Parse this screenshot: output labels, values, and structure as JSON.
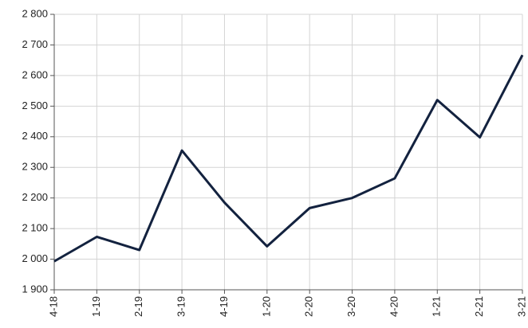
{
  "chart_data": {
    "type": "line",
    "categories": [
      "4-18",
      "1-19",
      "2-19",
      "3-19",
      "4-19",
      "1-20",
      "2-20",
      "3-20",
      "4-20",
      "1-21",
      "2-21",
      "3-21"
    ],
    "series": [
      {
        "color": "#13223f",
        "values": [
          1993,
          2073,
          2030,
          2355,
          2185,
          2042,
          2167,
          2200,
          2264,
          2520,
          2398,
          2667
        ]
      }
    ],
    "ylim": [
      1900,
      2800
    ],
    "yticks": [
      {
        "value": 1900,
        "label": "1 900"
      },
      {
        "value": 2000,
        "label": "2 000"
      },
      {
        "value": 2100,
        "label": "2 100"
      },
      {
        "value": 2200,
        "label": "2 200"
      },
      {
        "value": 2300,
        "label": "2 300"
      },
      {
        "value": 2400,
        "label": "2 400"
      },
      {
        "value": 2500,
        "label": "2 500"
      },
      {
        "value": 2600,
        "label": "2 600"
      },
      {
        "value": 2700,
        "label": "2 700"
      },
      {
        "value": 2800,
        "label": "2 800"
      }
    ],
    "grid": true
  }
}
